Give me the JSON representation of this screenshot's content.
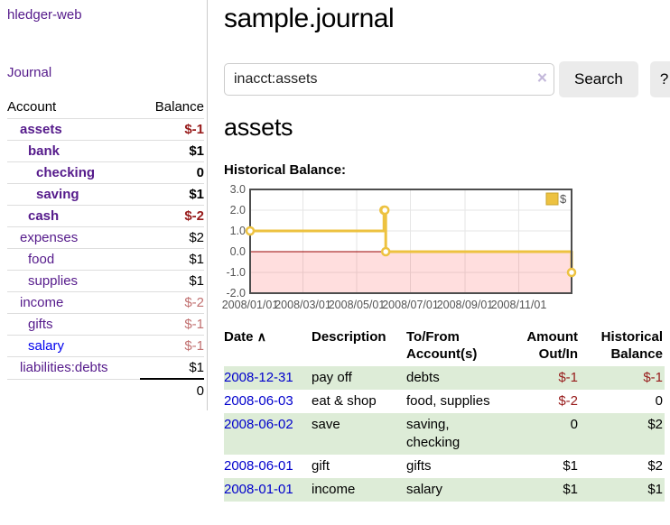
{
  "app": {
    "title": "hledger-web"
  },
  "sidebar": {
    "journal_label": "Journal",
    "accounts_table": {
      "headers": {
        "account": "Account",
        "balance": "Balance"
      },
      "rows": [
        {
          "name": "assets",
          "balance": "$-1",
          "level": 1,
          "in_query": true
        },
        {
          "name": "bank",
          "balance": "$1",
          "level": 2,
          "in_query": true
        },
        {
          "name": "checking",
          "balance": "0",
          "level": 3,
          "in_query": true
        },
        {
          "name": "saving",
          "balance": "$1",
          "level": 3,
          "in_query": true
        },
        {
          "name": "cash",
          "balance": "$-2",
          "level": 2,
          "in_query": true
        },
        {
          "name": "expenses",
          "balance": "$2",
          "level": 1,
          "in_query": false
        },
        {
          "name": "food",
          "balance": "$1",
          "level": 2,
          "in_query": false
        },
        {
          "name": "supplies",
          "balance": "$1",
          "level": 2,
          "in_query": false
        },
        {
          "name": "income",
          "balance": "$-2",
          "level": 1,
          "in_query": false
        },
        {
          "name": "gifts",
          "balance": "$-1",
          "level": 2,
          "in_query": false
        },
        {
          "name": "salary",
          "balance": "$-1",
          "level": 2,
          "in_query": false,
          "unvisited": true
        },
        {
          "name": "liabilities:debts",
          "balance": "$1",
          "level": 1,
          "in_query": false
        }
      ],
      "total": "0"
    }
  },
  "main": {
    "title": "sample.journal",
    "search": {
      "value": "inacct:assets",
      "clear_icon": "×",
      "button_label": "Search",
      "help_label": "?"
    },
    "account_heading": "assets"
  },
  "chart_data": {
    "type": "line",
    "title": "Historical Balance:",
    "step": true,
    "series": [
      {
        "name": "$",
        "color": "#edc240",
        "points": [
          {
            "date": "2008-01-01",
            "value": 1
          },
          {
            "date": "2008-06-01",
            "value": 2
          },
          {
            "date": "2008-06-02",
            "value": 2
          },
          {
            "date": "2008-06-03",
            "value": 0
          },
          {
            "date": "2008-12-31",
            "value": -1
          }
        ]
      }
    ],
    "x_ticks": [
      "2008/01/01",
      "2008/03/01",
      "2008/05/01",
      "2008/07/01",
      "2008/09/01",
      "2008/11/01"
    ],
    "y_ticks": [
      "3.0",
      "2.0",
      "1.0",
      "0.0",
      "-1.0",
      "-2.0"
    ],
    "ylim": [
      -2,
      3
    ],
    "x_range": [
      "2008-01-01",
      "2008-12-31"
    ],
    "grid": true,
    "legend": {
      "label": "$",
      "position": "top-right"
    },
    "colors": {
      "line": "#edc240",
      "marker_fill": "#ffffff",
      "border": "#4d4d4d",
      "gridline": "#e6e6e6",
      "tick_text": "#545454",
      "zero_line": "#990000",
      "negative_region": "rgba(255,0,0,0.13)"
    }
  },
  "register_table": {
    "headers": {
      "date": "Date",
      "sort_icon": "∧",
      "description": "Description",
      "accounts": "To/From Account(s)",
      "amount": "Amount Out/In",
      "balance": "Historical Balance"
    },
    "rows": [
      {
        "date": "2008-12-31",
        "description": "pay off",
        "accounts": "debts",
        "amount": "$-1",
        "balance": "$-1"
      },
      {
        "date": "2008-06-03",
        "description": "eat & shop",
        "accounts": "food, supplies",
        "amount": "$-2",
        "balance": "0"
      },
      {
        "date": "2008-06-02",
        "description": "save",
        "accounts": "saving, checking",
        "amount": "0",
        "balance": "$2"
      },
      {
        "date": "2008-06-01",
        "description": "gift",
        "accounts": "gifts",
        "amount": "$1",
        "balance": "$2"
      },
      {
        "date": "2008-01-01",
        "description": "income",
        "accounts": "salary",
        "amount": "$1",
        "balance": "$1"
      }
    ]
  }
}
